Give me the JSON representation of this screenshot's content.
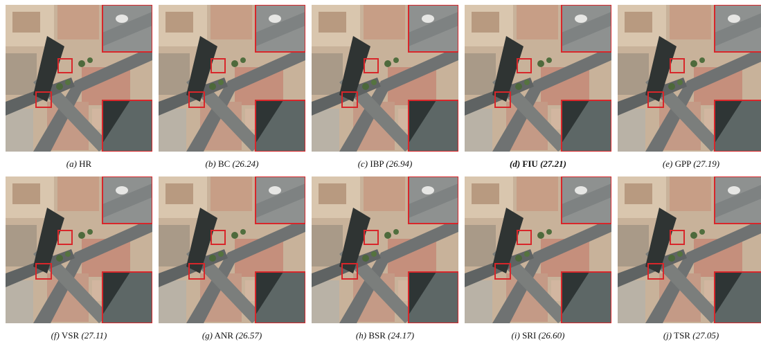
{
  "figure": {
    "panels": [
      {
        "label": "(a)",
        "name": "HR"
      },
      {
        "label": "(b)",
        "name": "BC",
        "score": "(26.24)"
      },
      {
        "label": "(c)",
        "name": "IBP",
        "score": "(26.94)"
      },
      {
        "label": "(d)",
        "name": "FIU",
        "score": "(27.21)",
        "bold": true
      },
      {
        "label": "(e)",
        "name": "GPP",
        "score": "(27.19)"
      },
      {
        "label": "(f)",
        "name": "VSR",
        "score": "(27.11)"
      },
      {
        "label": "(g)",
        "name": "ANR",
        "score": "(26.57)"
      },
      {
        "label": "(h)",
        "name": "BSR",
        "score": "(24.17)"
      },
      {
        "label": "(i)",
        "name": "SRI",
        "score": "(26.60)"
      },
      {
        "label": "(j)",
        "name": "TSR",
        "score": "(27.05)"
      }
    ]
  }
}
